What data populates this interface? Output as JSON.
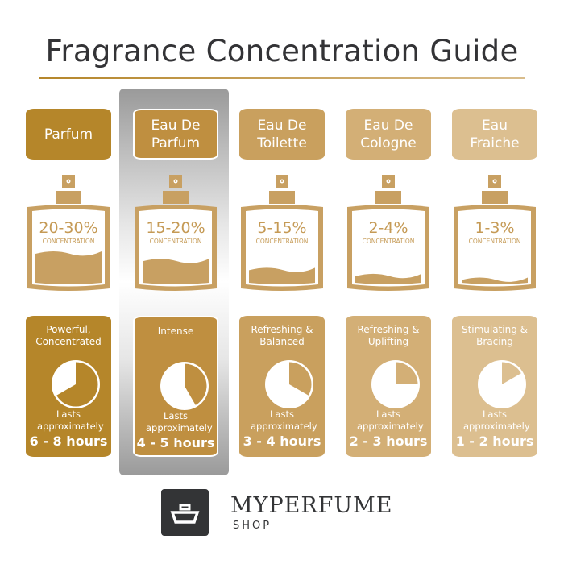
{
  "title": "Fragrance Concentration Guide",
  "colors": {
    "text": "#333336",
    "bottle": "#c8a062",
    "highlight": "#9a9a9a"
  },
  "types": [
    {
      "name": "Parfum",
      "color": "#b5862a",
      "concentration": "20-30%",
      "concentration_label": "CONCENTRATION",
      "fill_level": 0.42,
      "description": "Powerful, Concentrated",
      "lasts_label": "Lasts approximately",
      "hours": "6 - 8 hours",
      "clock_hours": 8,
      "highlighted": false
    },
    {
      "name": "Eau De Parfum",
      "color": "#bf8f40",
      "concentration": "15-20%",
      "concentration_label": "CONCENTRATION",
      "fill_level": 0.32,
      "description": "Intense",
      "lasts_label": "Lasts approximately",
      "hours": "4 - 5 hours",
      "clock_hours": 5,
      "highlighted": true
    },
    {
      "name": "Eau De Toilette",
      "color": "#c9a05e",
      "concentration": "5-15%",
      "concentration_label": "CONCENTRATION",
      "fill_level": 0.2,
      "description": "Refreshing & Balanced",
      "lasts_label": "Lasts approximately",
      "hours": "3 - 4 hours",
      "clock_hours": 4,
      "highlighted": false
    },
    {
      "name": "Eau De Cologne",
      "color": "#d3af76",
      "concentration": "2-4%",
      "concentration_label": "CONCENTRATION",
      "fill_level": 0.12,
      "description": "Refreshing & Uplifting",
      "lasts_label": "Lasts approximately",
      "hours": "2 - 3 hours",
      "clock_hours": 3,
      "highlighted": false
    },
    {
      "name": "Eau Fraiche",
      "color": "#dcbf90",
      "concentration": "1-3%",
      "concentration_label": "CONCENTRATION",
      "fill_level": 0.07,
      "description": "Stimulating & Bracing",
      "lasts_label": "Lasts approximately",
      "hours": "1 - 2 hours",
      "clock_hours": 2,
      "highlighted": false
    }
  ],
  "brand": {
    "name": "MYPERFUME",
    "sub": "SHOP"
  }
}
